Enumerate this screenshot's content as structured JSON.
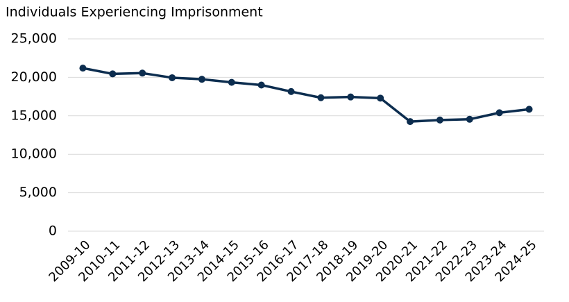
{
  "chart_data": {
    "type": "line",
    "title": "Individuals Experiencing Imprisonment",
    "categories": [
      "2009-10",
      "2010-11",
      "2011-12",
      "2012-13",
      "2013-14",
      "2014-15",
      "2015-16",
      "2016-17",
      "2017-18",
      "2018-19",
      "2019-20",
      "2020-21",
      "2021-22",
      "2022-23",
      "2023-24",
      "2024-25"
    ],
    "series": [
      {
        "name": "Individuals Experiencing Imprisonment",
        "color": "#0c2d4f",
        "values": [
          21200,
          20450,
          20550,
          19950,
          19750,
          19350,
          19000,
          18150,
          17350,
          17450,
          17300,
          14250,
          14450,
          14550,
          15400,
          15850
        ]
      }
    ],
    "ylim": [
      0,
      25000
    ],
    "yticks": [
      0,
      {
        "value": 5000,
        "label": "5,000"
      },
      {
        "value": 10000,
        "label": "10,000"
      },
      {
        "value": 15000,
        "label": "15,000"
      },
      {
        "value": 20000,
        "label": "20,000"
      },
      {
        "value": 25000,
        "label": "25,000"
      }
    ],
    "grid": true
  }
}
